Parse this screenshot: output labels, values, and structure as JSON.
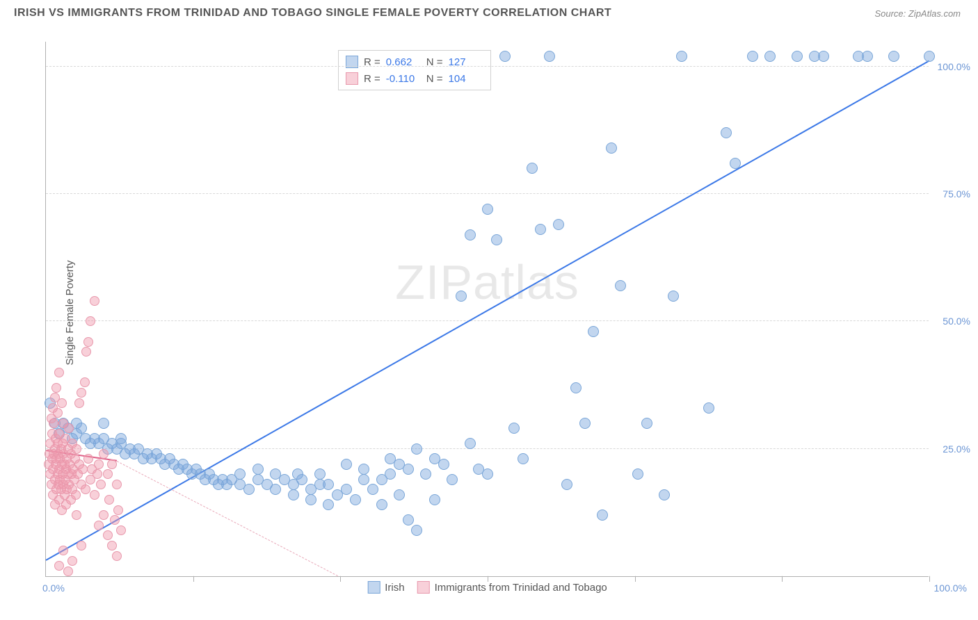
{
  "header": {
    "title": "IRISH VS IMMIGRANTS FROM TRINIDAD AND TOBAGO SINGLE FEMALE POVERTY CORRELATION CHART",
    "source": "Source: ZipAtlas.com"
  },
  "watermark": "ZIPatlas",
  "chart": {
    "type": "scatter",
    "y_axis_title": "Single Female Poverty",
    "xlim": [
      0,
      100
    ],
    "ylim": [
      0,
      105
    ],
    "x_ticks": [
      0,
      100
    ],
    "x_tick_labels": [
      "0.0%",
      "100.0%"
    ],
    "y_ticks": [
      25,
      50,
      75,
      100
    ],
    "y_tick_labels": [
      "25.0%",
      "50.0%",
      "75.0%",
      "100.0%"
    ],
    "x_minor_ticks": [
      16.7,
      33.3,
      50,
      66.7,
      83.3,
      100
    ],
    "background_color": "#ffffff",
    "grid_color_h": "#d8d8d8",
    "grid_color_v": "#eeeeee",
    "axis_color": "#b0b0b0",
    "tick_label_color": "#6b95d4",
    "tick_label_fontsize": 14
  },
  "series": {
    "irish": {
      "label": "Irish",
      "color_fill": "rgba(120,165,220,0.45)",
      "color_stroke": "#7aa6d8",
      "marker_radius": 8,
      "correlation_r": "0.662",
      "correlation_n": "127",
      "trend": {
        "x1": 0,
        "y1": 3,
        "x2": 100,
        "y2": 101,
        "color": "#3b78e7",
        "width": 2,
        "style": "solid"
      },
      "points": [
        [
          0.5,
          34
        ],
        [
          1,
          30
        ],
        [
          1.5,
          28
        ],
        [
          2,
          30
        ],
        [
          2.5,
          29
        ],
        [
          3,
          27
        ],
        [
          3.5,
          28
        ],
        [
          3.5,
          30
        ],
        [
          4,
          29
        ],
        [
          4.5,
          27
        ],
        [
          5,
          26
        ],
        [
          5.5,
          27
        ],
        [
          6,
          26
        ],
        [
          6.5,
          27
        ],
        [
          6.5,
          30
        ],
        [
          7,
          25
        ],
        [
          7.5,
          26
        ],
        [
          8,
          25
        ],
        [
          8.5,
          26
        ],
        [
          8.5,
          27
        ],
        [
          9,
          24
        ],
        [
          9.5,
          25
        ],
        [
          10,
          24
        ],
        [
          10.5,
          25
        ],
        [
          11,
          23
        ],
        [
          11.5,
          24
        ],
        [
          12,
          23
        ],
        [
          12.5,
          24
        ],
        [
          13,
          23
        ],
        [
          13.5,
          22
        ],
        [
          14,
          23
        ],
        [
          14.5,
          22
        ],
        [
          15,
          21
        ],
        [
          15.5,
          22
        ],
        [
          16,
          21
        ],
        [
          16.5,
          20
        ],
        [
          17,
          21
        ],
        [
          17.5,
          20
        ],
        [
          18,
          19
        ],
        [
          18.5,
          20
        ],
        [
          19,
          19
        ],
        [
          19.5,
          18
        ],
        [
          20,
          19
        ],
        [
          20.5,
          18
        ],
        [
          21,
          19
        ],
        [
          22,
          18
        ],
        [
          22,
          20
        ],
        [
          23,
          17
        ],
        [
          24,
          19
        ],
        [
          24,
          21
        ],
        [
          25,
          18
        ],
        [
          26,
          17
        ],
        [
          26,
          20
        ],
        [
          27,
          19
        ],
        [
          28,
          16
        ],
        [
          28,
          18
        ],
        [
          28.5,
          20
        ],
        [
          29,
          19
        ],
        [
          30,
          15
        ],
        [
          30,
          17
        ],
        [
          31,
          18
        ],
        [
          31,
          20
        ],
        [
          32,
          14
        ],
        [
          32,
          18
        ],
        [
          33,
          16
        ],
        [
          34,
          17
        ],
        [
          34,
          22
        ],
        [
          35,
          15
        ],
        [
          36,
          21
        ],
        [
          36,
          19
        ],
        [
          37,
          17
        ],
        [
          38,
          14
        ],
        [
          38,
          19
        ],
        [
          39,
          23
        ],
        [
          39,
          20
        ],
        [
          40,
          16
        ],
        [
          40,
          22
        ],
        [
          41,
          11
        ],
        [
          41,
          21
        ],
        [
          42,
          9
        ],
        [
          42,
          25
        ],
        [
          43,
          20
        ],
        [
          44,
          15
        ],
        [
          44,
          23
        ],
        [
          45,
          22
        ],
        [
          46,
          19
        ],
        [
          47,
          55
        ],
        [
          48,
          26
        ],
        [
          48,
          67
        ],
        [
          49,
          21
        ],
        [
          50,
          20
        ],
        [
          50,
          72
        ],
        [
          51,
          66
        ],
        [
          52,
          102
        ],
        [
          53,
          29
        ],
        [
          54,
          23
        ],
        [
          55,
          80
        ],
        [
          56,
          68
        ],
        [
          57,
          102
        ],
        [
          58,
          69
        ],
        [
          59,
          18
        ],
        [
          60,
          37
        ],
        [
          61,
          30
        ],
        [
          62,
          48
        ],
        [
          63,
          12
        ],
        [
          64,
          84
        ],
        [
          65,
          57
        ],
        [
          67,
          20
        ],
        [
          68,
          30
        ],
        [
          70,
          16
        ],
        [
          71,
          55
        ],
        [
          72,
          102
        ],
        [
          75,
          33
        ],
        [
          77,
          87
        ],
        [
          78,
          81
        ],
        [
          80,
          102
        ],
        [
          82,
          102
        ],
        [
          85,
          102
        ],
        [
          87,
          102
        ],
        [
          88,
          102
        ],
        [
          92,
          102
        ],
        [
          93,
          102
        ],
        [
          96,
          102
        ],
        [
          100,
          102
        ]
      ]
    },
    "trinidad": {
      "label": "Immigants from Trinidad and Tobago",
      "label_display": "Immigrants from Trinidad and Tobago",
      "color_fill": "rgba(240,150,170,0.45)",
      "color_stroke": "#e898ac",
      "marker_radius": 7,
      "correlation_r": "-0.110",
      "correlation_n": "104",
      "trend_solid": {
        "x1": 0,
        "y1": 24.5,
        "x2": 8,
        "y2": 22.5,
        "color": "#e06088",
        "width": 2,
        "style": "solid"
      },
      "trend_dash": {
        "x1": 8,
        "y1": 22.5,
        "x2": 33,
        "y2": 0,
        "color": "#e8a8b8",
        "width": 1,
        "style": "dashed"
      },
      "points": [
        [
          0.3,
          22
        ],
        [
          0.4,
          24
        ],
        [
          0.5,
          20
        ],
        [
          0.5,
          26
        ],
        [
          0.6,
          18
        ],
        [
          0.7,
          23
        ],
        [
          0.7,
          28
        ],
        [
          0.8,
          21
        ],
        [
          0.8,
          16
        ],
        [
          0.9,
          24
        ],
        [
          0.9,
          30
        ],
        [
          1,
          19
        ],
        [
          1,
          25
        ],
        [
          1,
          14
        ],
        [
          1.1,
          22
        ],
        [
          1.1,
          27
        ],
        [
          1.2,
          17
        ],
        [
          1.2,
          23
        ],
        [
          1.3,
          20
        ],
        [
          1.3,
          26
        ],
        [
          1.3,
          32
        ],
        [
          1.4,
          18
        ],
        [
          1.4,
          24
        ],
        [
          1.5,
          15
        ],
        [
          1.5,
          21
        ],
        [
          1.5,
          28
        ],
        [
          1.6,
          23
        ],
        [
          1.6,
          19
        ],
        [
          1.7,
          25
        ],
        [
          1.7,
          17
        ],
        [
          1.8,
          22
        ],
        [
          1.8,
          13
        ],
        [
          1.9,
          20
        ],
        [
          1.9,
          26
        ],
        [
          2,
          18
        ],
        [
          2,
          24
        ],
        [
          2,
          30
        ],
        [
          2.1,
          16
        ],
        [
          2.1,
          22
        ],
        [
          2.2,
          19
        ],
        [
          2.2,
          27
        ],
        [
          2.3,
          21
        ],
        [
          2.3,
          14
        ],
        [
          2.4,
          23
        ],
        [
          2.4,
          17
        ],
        [
          2.5,
          25
        ],
        [
          2.5,
          20
        ],
        [
          2.6,
          18
        ],
        [
          2.6,
          29
        ],
        [
          2.7,
          22
        ],
        [
          2.8,
          15
        ],
        [
          2.8,
          24
        ],
        [
          2.9,
          20
        ],
        [
          3,
          17
        ],
        [
          3,
          26
        ],
        [
          3.1,
          21
        ],
        [
          3.2,
          19
        ],
        [
          3.3,
          23
        ],
        [
          3.4,
          16
        ],
        [
          3.5,
          25
        ],
        [
          3.5,
          12
        ],
        [
          3.6,
          20
        ],
        [
          3.8,
          22
        ],
        [
          3.8,
          34
        ],
        [
          4,
          18
        ],
        [
          4,
          36
        ],
        [
          4.2,
          21
        ],
        [
          4.4,
          38
        ],
        [
          4.5,
          17
        ],
        [
          4.6,
          44
        ],
        [
          4.8,
          23
        ],
        [
          4.8,
          46
        ],
        [
          5,
          19
        ],
        [
          5,
          50
        ],
        [
          5.2,
          21
        ],
        [
          5.5,
          54
        ],
        [
          5.5,
          16
        ],
        [
          5.8,
          20
        ],
        [
          6,
          22
        ],
        [
          6,
          10
        ],
        [
          6.2,
          18
        ],
        [
          6.5,
          12
        ],
        [
          6.5,
          24
        ],
        [
          7,
          8
        ],
        [
          7,
          20
        ],
        [
          7.2,
          15
        ],
        [
          7.5,
          6
        ],
        [
          7.5,
          22
        ],
        [
          7.8,
          11
        ],
        [
          8,
          18
        ],
        [
          8,
          4
        ],
        [
          8.2,
          13
        ],
        [
          8.5,
          9
        ],
        [
          1.5,
          2
        ],
        [
          2,
          5
        ],
        [
          2.5,
          1
        ],
        [
          3,
          3
        ],
        [
          4,
          6
        ],
        [
          1,
          35
        ],
        [
          1.2,
          37
        ],
        [
          1.5,
          40
        ],
        [
          0.8,
          33
        ],
        [
          0.6,
          31
        ],
        [
          1.8,
          34
        ]
      ]
    }
  },
  "legend_top": {
    "r_label": "R =",
    "n_label": "N ="
  },
  "legend_bottom": {
    "items": [
      "Irish",
      "Immigrants from Trinidad and Tobago"
    ]
  }
}
